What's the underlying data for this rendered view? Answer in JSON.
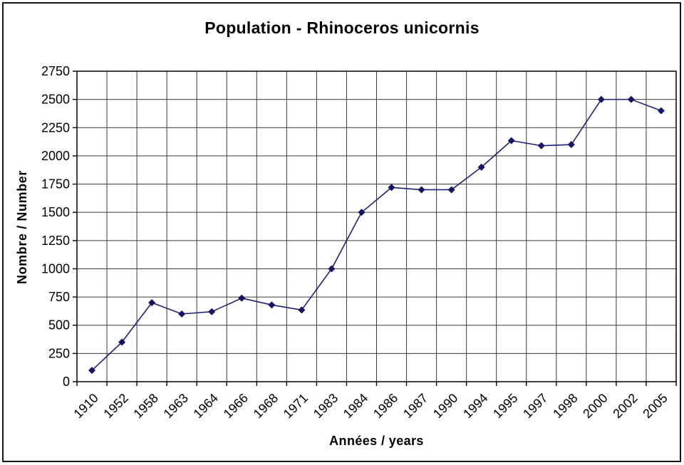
{
  "chart_data": {
    "type": "line",
    "title": "Population - Rhinoceros unicornis",
    "xlabel": "Années / years",
    "ylabel": "Nombre / Number",
    "categories": [
      "1910",
      "1952",
      "1958",
      "1963",
      "1964",
      "1966",
      "1968",
      "1971",
      "1983",
      "1984",
      "1986",
      "1987",
      "1990",
      "1994",
      "1995",
      "1997",
      "1998",
      "2000",
      "2002",
      "2005"
    ],
    "values": [
      100,
      350,
      700,
      600,
      620,
      740,
      680,
      635,
      1000,
      1500,
      1720,
      1700,
      1700,
      1900,
      2135,
      2090,
      2100,
      2500,
      2500,
      2400
    ],
    "ylim": [
      0,
      2750
    ],
    "ytick_step": 250,
    "grid": "both",
    "legend": "none",
    "colors": {
      "line": "#1f1f7a",
      "marker": "#14145f",
      "gridline": "#3a3a3a",
      "axis": "#000000",
      "text": "#000000",
      "background": "#ffffff"
    }
  }
}
